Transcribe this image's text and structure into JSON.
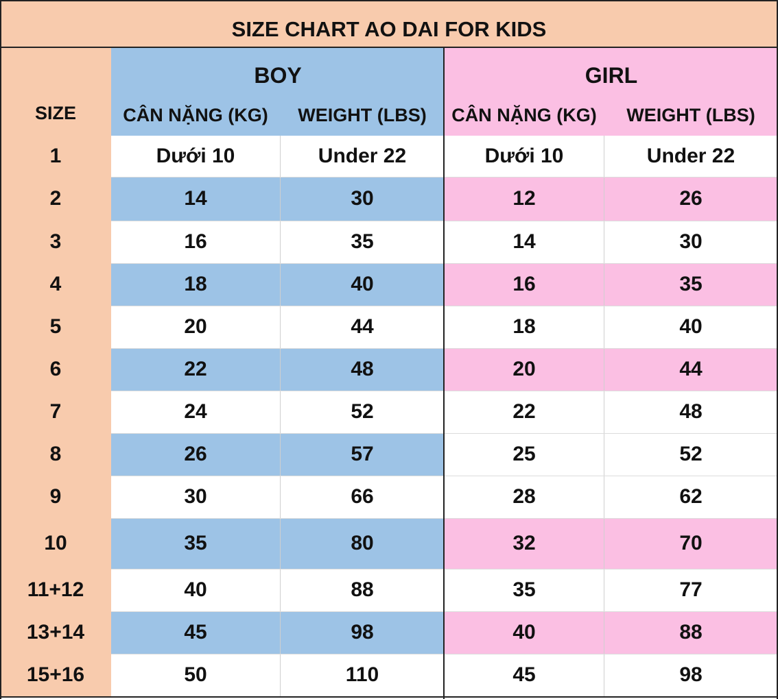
{
  "title": "SIZE CHART AO DAI FOR KIDS",
  "groups": {
    "boy": "BOY",
    "girl": "GIRL"
  },
  "columns": {
    "size": "SIZE",
    "boy_kg": "CÂN NẶNG (KG)",
    "boy_lbs": "WEIGHT (LBS)",
    "girl_kg": "CÂN NẶNG (KG)",
    "girl_lbs": "WEIGHT (LBS)"
  },
  "rows": [
    {
      "size": "1",
      "boy_kg": "Dưới 10",
      "boy_lbs": "Under 22",
      "girl_kg": "Dưới 10",
      "girl_lbs": "Under 22"
    },
    {
      "size": "2",
      "boy_kg": "14",
      "boy_lbs": "30",
      "girl_kg": "12",
      "girl_lbs": "26"
    },
    {
      "size": "3",
      "boy_kg": "16",
      "boy_lbs": "35",
      "girl_kg": "14",
      "girl_lbs": "30"
    },
    {
      "size": "4",
      "boy_kg": "18",
      "boy_lbs": "40",
      "girl_kg": "16",
      "girl_lbs": "35"
    },
    {
      "size": "5",
      "boy_kg": "20",
      "boy_lbs": "44",
      "girl_kg": "18",
      "girl_lbs": "40"
    },
    {
      "size": "6",
      "boy_kg": "22",
      "boy_lbs": "48",
      "girl_kg": "20",
      "girl_lbs": "44"
    },
    {
      "size": "7",
      "boy_kg": "24",
      "boy_lbs": "52",
      "girl_kg": "22",
      "girl_lbs": "48"
    },
    {
      "size": "8",
      "boy_kg": "26",
      "boy_lbs": "57",
      "girl_kg": "25",
      "girl_lbs": "52"
    },
    {
      "size": "9",
      "boy_kg": "30",
      "boy_lbs": "66",
      "girl_kg": "28",
      "girl_lbs": "62"
    },
    {
      "size": "10",
      "boy_kg": "35",
      "boy_lbs": "80",
      "girl_kg": "32",
      "girl_lbs": "70"
    },
    {
      "size": "11+12",
      "boy_kg": "40",
      "boy_lbs": "88",
      "girl_kg": "35",
      "girl_lbs": "77"
    },
    {
      "size": "13+14",
      "boy_kg": "45",
      "boy_lbs": "98",
      "girl_kg": "40",
      "girl_lbs": "88"
    },
    {
      "size": "15+16",
      "boy_kg": "50",
      "boy_lbs": "110",
      "girl_kg": "45",
      "girl_lbs": "98"
    }
  ],
  "colors": {
    "size_bg": "#f8cbad",
    "boy_bg": "#9dc3e6",
    "girl_bg": "#fbbfe3",
    "plain_bg": "#ffffff"
  }
}
